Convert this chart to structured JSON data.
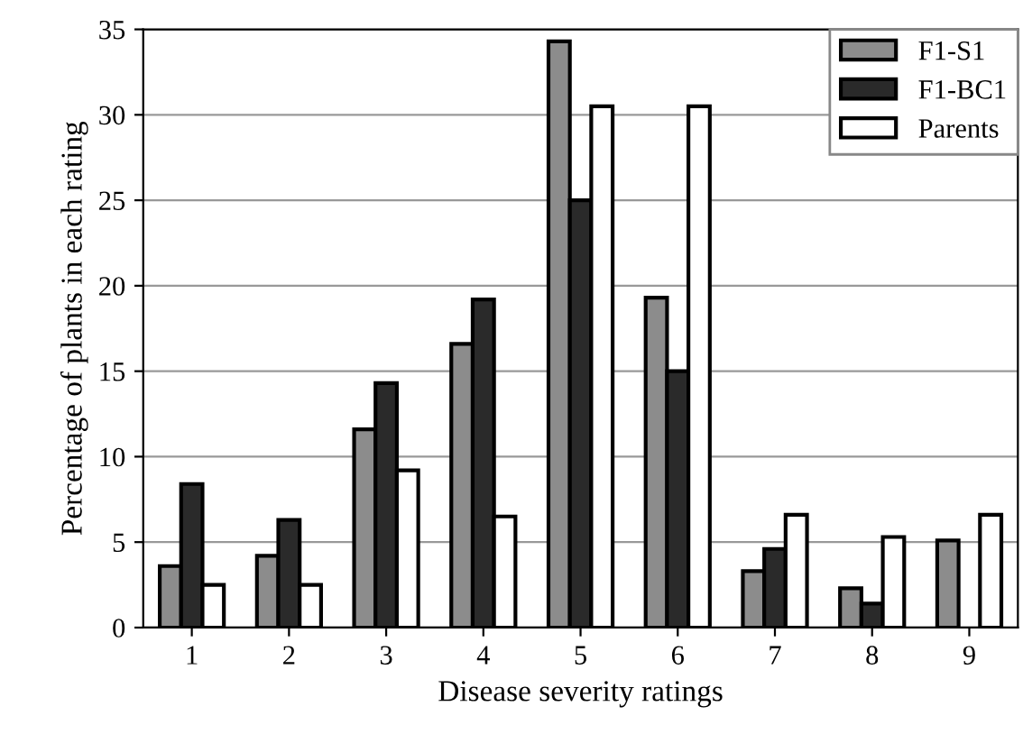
{
  "chart_data": {
    "type": "bar",
    "xlabel": "Disease severity ratings",
    "ylabel": "Percentage of plants in each rating",
    "categories": [
      "1",
      "2",
      "3",
      "4",
      "5",
      "6",
      "7",
      "8",
      "9"
    ],
    "series": [
      {
        "name": "F1-S1",
        "color": "#8c8c8c",
        "values": [
          3.6,
          4.2,
          11.6,
          16.6,
          34.3,
          19.3,
          3.3,
          2.3,
          5.1
        ]
      },
      {
        "name": "F1-BC1",
        "color": "#2a2a2a",
        "values": [
          8.4,
          6.3,
          14.3,
          19.2,
          25.0,
          15.0,
          4.6,
          1.4,
          null
        ]
      },
      {
        "name": "Parents",
        "color": "#ffffff",
        "values": [
          2.5,
          2.5,
          9.2,
          6.5,
          30.5,
          30.5,
          6.6,
          5.3,
          6.6
        ]
      }
    ],
    "ylim": [
      0,
      35
    ],
    "yticks": [
      0,
      5,
      10,
      15,
      20,
      25,
      30,
      35
    ],
    "grid": "y",
    "legend": "top right"
  }
}
